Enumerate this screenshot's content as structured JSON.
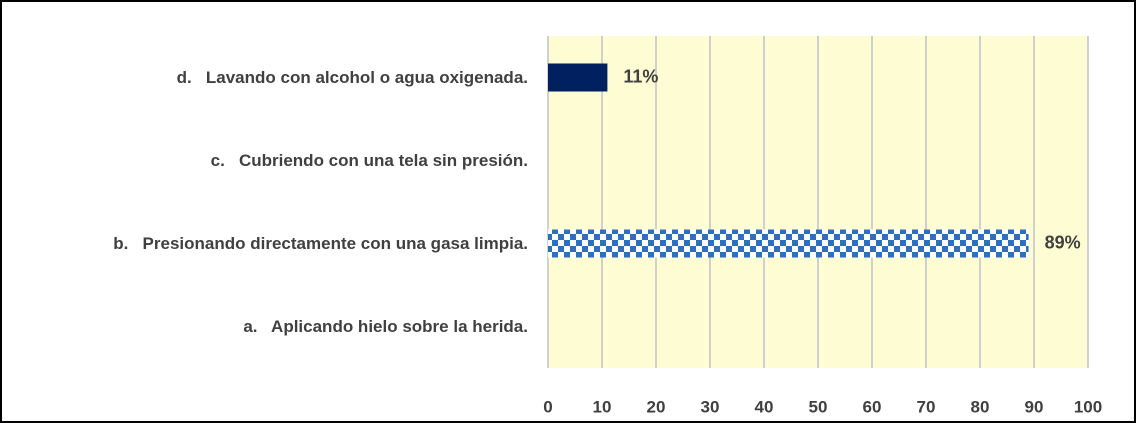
{
  "chart_data": {
    "type": "bar",
    "orientation": "horizontal",
    "categories": [
      "d.   Lavando con alcohol o agua oxigenada.",
      "c.   Cubriendo con una tela sin presión.",
      "b.   Presionando directamente con una gasa limpia.",
      "a.   Aplicando hielo sobre la herida."
    ],
    "values": [
      11,
      0,
      89,
      0
    ],
    "value_labels": [
      "11%",
      null,
      "89%",
      null
    ],
    "colors": [
      "#002060",
      "#002060",
      "#2e6fc0",
      "#002060"
    ],
    "patterns": [
      null,
      null,
      "checker",
      null
    ],
    "xlim": [
      0,
      100
    ],
    "xticks": [
      0,
      10,
      20,
      30,
      40,
      50,
      60,
      70,
      80,
      90,
      100
    ],
    "grid": true,
    "plot_background": "#fdfcd2"
  }
}
